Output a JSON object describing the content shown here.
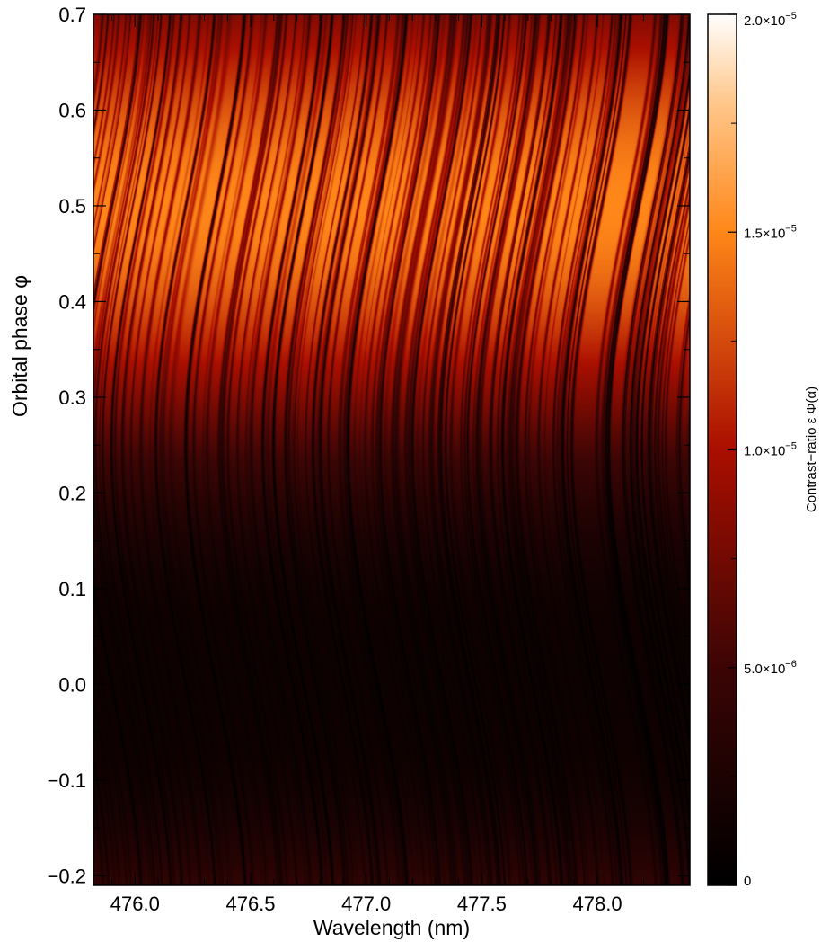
{
  "chart_data": {
    "type": "heatmap",
    "xlabel": "Wavelength (nm)",
    "ylabel": "Orbital phase φ",
    "colorbar_label": "Contrast−ratio ε Φ(α)",
    "xlim": [
      475.82,
      478.4
    ],
    "ylim": [
      -0.21,
      0.7
    ],
    "x_ticks": [
      476.0,
      476.5,
      477.0,
      477.5,
      478.0
    ],
    "x_tick_labels": [
      "476.0",
      "476.5",
      "477.0",
      "477.5",
      "478.0"
    ],
    "y_ticks": [
      -0.2,
      -0.1,
      0.0,
      0.1,
      0.2,
      0.3,
      0.4,
      0.5,
      0.6,
      0.7
    ],
    "y_tick_labels": [
      "−0.2",
      "−0.1",
      "0.0",
      "0.1",
      "0.2",
      "0.3",
      "0.4",
      "0.5",
      "0.6",
      "0.7"
    ],
    "colorbar": {
      "min": 0,
      "max": 2e-05,
      "colormap": "heat (black-red-orange-white)",
      "ticks": [
        0,
        5e-06,
        1e-05,
        1.5e-05,
        2e-05
      ],
      "tick_mantissas": [
        "0",
        "5.0×10",
        "1.0×10",
        "1.5×10",
        "2.0×10"
      ],
      "tick_exponents": [
        "",
        "−6",
        "−5",
        "−5",
        "−5"
      ]
    },
    "model": {
      "amplitude_peak_phase": 0.5,
      "peak_contrast": 1.5e-05,
      "absorption_line_shift_amplitude_nm": 0.13
    }
  }
}
